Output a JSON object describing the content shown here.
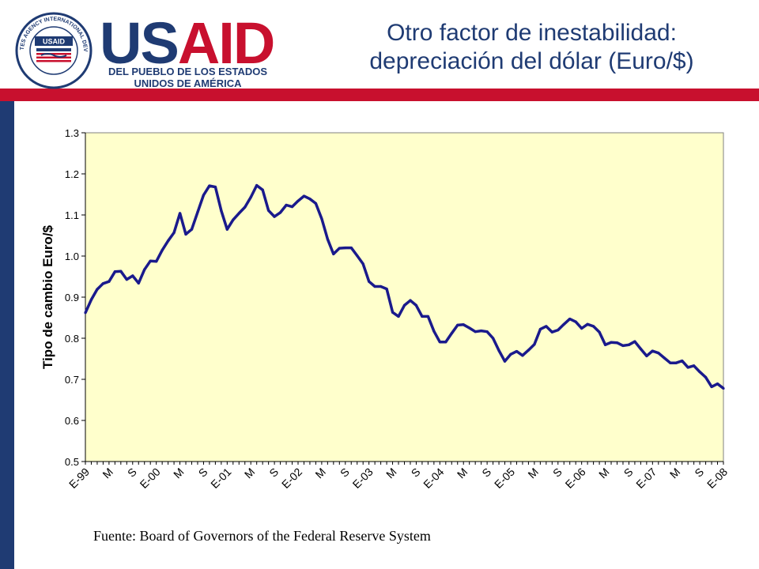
{
  "header": {
    "seal_text": "UNITED STATES AGENCY INTERNATIONAL DEVELOPMENT",
    "seal_center": "USAID",
    "wordmark_us": "US",
    "wordmark_aid": "AID",
    "tagline_line1": "DEL PUEBLO DE LOS ESTADOS",
    "tagline_line2": "UNIDOS DE AMÉRICA",
    "title_line1": "Otro factor de inestabilidad:",
    "title_line2": "depreciación del dólar (Euro/$)"
  },
  "colors": {
    "navy": "#1f3b73",
    "red": "#c8102e",
    "plot_background": "#ffffcc",
    "series_line": "#1a1a8c"
  },
  "chart_data": {
    "type": "line",
    "title": "",
    "xlabel": "",
    "ylabel": "Tipo de cambio Euro/$",
    "ylim": [
      0.5,
      1.3
    ],
    "yticks": [
      0.5,
      0.6,
      0.7,
      0.8,
      0.9,
      1.0,
      1.1,
      1.2,
      1.3
    ],
    "ytick_labels": [
      "0.5",
      "0.6",
      "0.7",
      "0.8",
      "0.9",
      "1.0",
      "1.1",
      "1.2",
      "1.3"
    ],
    "grid": false,
    "legend": "none",
    "x_tick_labels": [
      "E-99",
      "M",
      "S",
      "E-00",
      "M",
      "S",
      "E-01",
      "M",
      "S",
      "E-02",
      "M",
      "S",
      "E-03",
      "M",
      "S",
      "E-04",
      "M",
      "S",
      "E-05",
      "M",
      "S",
      "E-06",
      "M",
      "S",
      "E-07",
      "M",
      "S",
      "E-08"
    ],
    "x_tick_positions": [
      0,
      4,
      8,
      12,
      16,
      20,
      24,
      28,
      32,
      36,
      40,
      44,
      48,
      52,
      56,
      60,
      64,
      68,
      72,
      76,
      80,
      84,
      88,
      92,
      96,
      100,
      104,
      108
    ],
    "series": [
      {
        "values": [
          0.862,
          0.894,
          0.919,
          0.933,
          0.938,
          0.962,
          0.963,
          0.943,
          0.952,
          0.934,
          0.967,
          0.988,
          0.987,
          1.014,
          1.037,
          1.057,
          1.104,
          1.053,
          1.065,
          1.107,
          1.148,
          1.171,
          1.168,
          1.11,
          1.065,
          1.088,
          1.104,
          1.119,
          1.143,
          1.172,
          1.161,
          1.111,
          1.096,
          1.106,
          1.124,
          1.12,
          1.134,
          1.146,
          1.139,
          1.128,
          1.091,
          1.041,
          1.005,
          1.019,
          1.02,
          1.02,
          1.001,
          0.981,
          0.938,
          0.926,
          0.926,
          0.92,
          0.863,
          0.853,
          0.88,
          0.892,
          0.88,
          0.853,
          0.853,
          0.817,
          0.791,
          0.791,
          0.812,
          0.832,
          0.833,
          0.825,
          0.816,
          0.818,
          0.816,
          0.8,
          0.77,
          0.744,
          0.761,
          0.768,
          0.758,
          0.771,
          0.785,
          0.822,
          0.829,
          0.815,
          0.82,
          0.834,
          0.847,
          0.84,
          0.824,
          0.834,
          0.829,
          0.815,
          0.784,
          0.79,
          0.789,
          0.782,
          0.784,
          0.792,
          0.774,
          0.757,
          0.769,
          0.764,
          0.752,
          0.74,
          0.74,
          0.745,
          0.729,
          0.733,
          0.718,
          0.705,
          0.682,
          0.689,
          0.678
        ]
      }
    ]
  },
  "source": "Fuente: Board of Governors of the Federal Reserve System"
}
